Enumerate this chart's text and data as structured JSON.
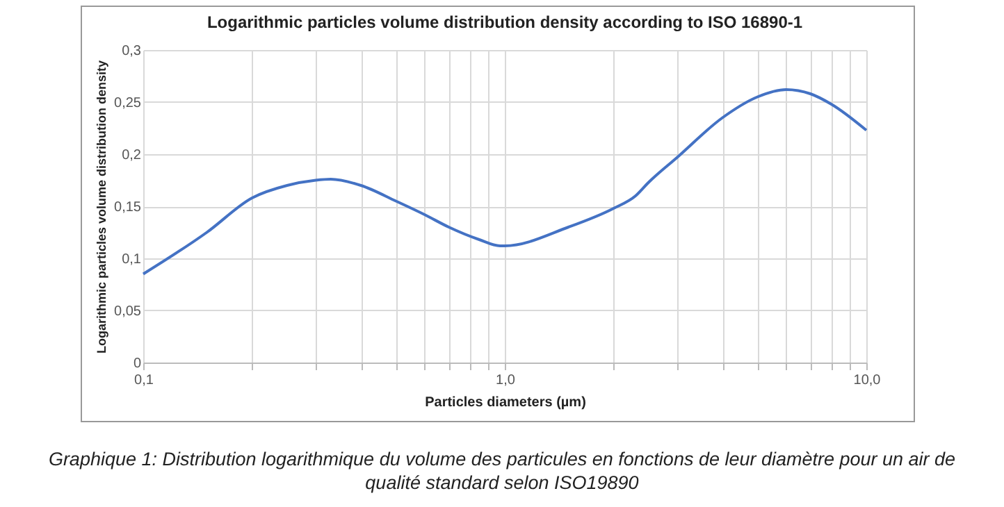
{
  "chart_data": {
    "type": "line",
    "title": "Logarithmic particles volume distribution density according to ISO 16890-1",
    "xlabel": "Particles diameters (µm)",
    "ylabel": "Logarithmic particles volume distribution density",
    "annotations": [
      "Graphique 1: Distribution logarithmique du volume des particules en fonctions de leur diamètre pour un air de qualité standard selon ISO19890"
    ],
    "x": [
      0.1,
      0.15,
      0.2,
      0.25,
      0.3,
      0.33,
      0.4,
      0.5,
      0.6,
      0.7,
      0.85,
      0.97,
      1.0,
      1.5,
      2.0,
      2.3,
      2.5,
      3.0,
      4.0,
      5.0,
      6.0,
      7.0,
      8.0,
      10.0
    ],
    "series": [
      {
        "color": "#4472c4",
        "values": [
          0.085,
          0.125,
          0.158,
          0.17,
          0.175,
          0.176,
          0.17,
          0.155,
          0.142,
          0.13,
          0.118,
          0.112,
          0.112,
          0.13,
          0.148,
          0.16,
          0.173,
          0.197,
          0.235,
          0.255,
          0.262,
          0.258,
          0.248,
          0.223
        ]
      }
    ],
    "log": "x",
    "xlim": [
      0.1,
      10
    ],
    "ylim": [
      0,
      0.3
    ],
    "xticks": [
      {
        "value": 0.1,
        "label": "0,1"
      },
      {
        "value": 0.2,
        "label": null
      },
      {
        "value": 0.3,
        "label": null
      },
      {
        "value": 0.4,
        "label": null
      },
      {
        "value": 0.5,
        "label": null
      },
      {
        "value": 0.6,
        "label": null
      },
      {
        "value": 0.7,
        "label": null
      },
      {
        "value": 0.8,
        "label": null
      },
      {
        "value": 0.9,
        "label": null
      },
      {
        "value": 1,
        "label": "1,0"
      },
      {
        "value": 2,
        "label": null
      },
      {
        "value": 3,
        "label": null
      },
      {
        "value": 4,
        "label": null
      },
      {
        "value": 5,
        "label": null
      },
      {
        "value": 6,
        "label": null
      },
      {
        "value": 7,
        "label": null
      },
      {
        "value": 8,
        "label": null
      },
      {
        "value": 9,
        "label": null
      },
      {
        "value": 10,
        "label": "10,0"
      }
    ],
    "yticks": [
      {
        "value": 0,
        "label": "0"
      },
      {
        "value": 0.05,
        "label": "0,05"
      },
      {
        "value": 0.1,
        "label": "0,1"
      },
      {
        "value": 0.15,
        "label": "0,15"
      },
      {
        "value": 0.2,
        "label": "0,2"
      },
      {
        "value": 0.25,
        "label": "0,25"
      },
      {
        "value": 0.3,
        "label": "0,3"
      }
    ],
    "grid": true,
    "marker": "none",
    "line_style": "solid"
  }
}
